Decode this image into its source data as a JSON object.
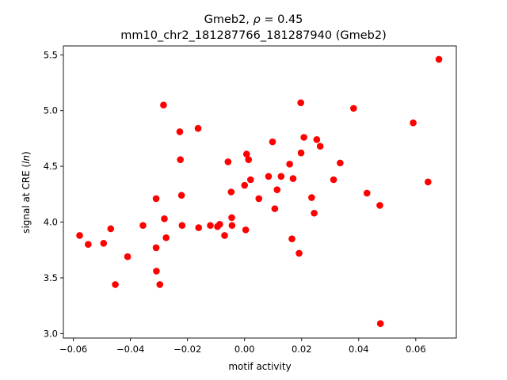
{
  "chart_data": {
    "type": "scatter",
    "title": {
      "line1_prefix": "Gmeb2, ",
      "line1_rho": "ρ",
      "line1_suffix": " = 0.45",
      "line2": "mm10_chr2_181287766_181287940 (Gmeb2)"
    },
    "xlabel": "motif activity",
    "ylabel_prefix": "signal at CRE (",
    "ylabel_italic": "ln",
    "ylabel_suffix": ")",
    "xlim": [
      -0.0635,
      0.0742
    ],
    "ylim": [
      2.96,
      5.58
    ],
    "xticks": [
      -0.06,
      -0.04,
      -0.02,
      0.0,
      0.02,
      0.04,
      0.06
    ],
    "xtick_labels": [
      "−0.06",
      "−0.04",
      "−0.02",
      "0.00",
      "0.02",
      "0.04",
      "0.06"
    ],
    "yticks": [
      3.0,
      3.5,
      4.0,
      4.5,
      5.0,
      5.5
    ],
    "ytick_labels": [
      "3.0",
      "3.5",
      "4.0",
      "4.5",
      "5.0",
      "5.5"
    ],
    "marker_color": "#ff0000",
    "grid": false,
    "legend": "none",
    "points": [
      {
        "x": -0.0578,
        "y": 3.88
      },
      {
        "x": -0.0548,
        "y": 3.8
      },
      {
        "x": -0.0494,
        "y": 3.81
      },
      {
        "x": -0.0469,
        "y": 3.94
      },
      {
        "x": -0.0453,
        "y": 3.44
      },
      {
        "x": -0.041,
        "y": 3.69
      },
      {
        "x": -0.0356,
        "y": 3.97
      },
      {
        "x": -0.031,
        "y": 4.21
      },
      {
        "x": -0.031,
        "y": 3.77
      },
      {
        "x": -0.0309,
        "y": 3.56
      },
      {
        "x": -0.0297,
        "y": 3.44
      },
      {
        "x": -0.0284,
        "y": 5.05
      },
      {
        "x": -0.0281,
        "y": 4.03
      },
      {
        "x": -0.0275,
        "y": 3.86
      },
      {
        "x": -0.0227,
        "y": 4.81
      },
      {
        "x": -0.0225,
        "y": 4.56
      },
      {
        "x": -0.0221,
        "y": 4.24
      },
      {
        "x": -0.0219,
        "y": 3.97
      },
      {
        "x": -0.0163,
        "y": 4.84
      },
      {
        "x": -0.0161,
        "y": 3.95
      },
      {
        "x": -0.012,
        "y": 3.97
      },
      {
        "x": -0.0095,
        "y": 3.96
      },
      {
        "x": -0.0087,
        "y": 3.98
      },
      {
        "x": -0.007,
        "y": 3.88
      },
      {
        "x": -0.0058,
        "y": 4.54
      },
      {
        "x": -0.0047,
        "y": 4.27
      },
      {
        "x": -0.0045,
        "y": 4.04
      },
      {
        "x": -0.0044,
        "y": 3.97
      },
      {
        "x": 0.0,
        "y": 4.33
      },
      {
        "x": 0.0004,
        "y": 3.93
      },
      {
        "x": 0.0007,
        "y": 4.61
      },
      {
        "x": 0.0014,
        "y": 4.56
      },
      {
        "x": 0.0021,
        "y": 4.38
      },
      {
        "x": 0.005,
        "y": 4.21
      },
      {
        "x": 0.0084,
        "y": 4.41
      },
      {
        "x": 0.0098,
        "y": 4.72
      },
      {
        "x": 0.0106,
        "y": 4.12
      },
      {
        "x": 0.0114,
        "y": 4.29
      },
      {
        "x": 0.0128,
        "y": 4.41
      },
      {
        "x": 0.0158,
        "y": 4.52
      },
      {
        "x": 0.0166,
        "y": 3.85
      },
      {
        "x": 0.017,
        "y": 4.39
      },
      {
        "x": 0.0191,
        "y": 3.72
      },
      {
        "x": 0.0197,
        "y": 5.07
      },
      {
        "x": 0.0198,
        "y": 4.62
      },
      {
        "x": 0.0208,
        "y": 4.76
      },
      {
        "x": 0.0235,
        "y": 4.22
      },
      {
        "x": 0.0244,
        "y": 4.08
      },
      {
        "x": 0.0253,
        "y": 4.74
      },
      {
        "x": 0.0265,
        "y": 4.68
      },
      {
        "x": 0.0312,
        "y": 4.38
      },
      {
        "x": 0.0335,
        "y": 4.53
      },
      {
        "x": 0.0382,
        "y": 5.02
      },
      {
        "x": 0.0429,
        "y": 4.26
      },
      {
        "x": 0.0474,
        "y": 4.15
      },
      {
        "x": 0.0476,
        "y": 3.09
      },
      {
        "x": 0.0591,
        "y": 4.89
      },
      {
        "x": 0.0643,
        "y": 4.36
      },
      {
        "x": 0.0681,
        "y": 5.46
      }
    ]
  }
}
